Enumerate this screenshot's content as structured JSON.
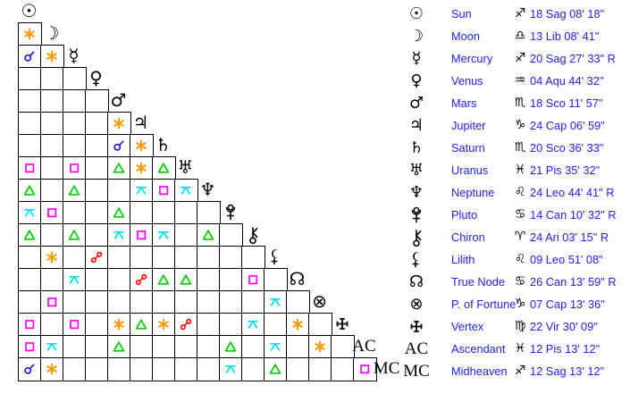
{
  "colors": {
    "text_blue": "#2222ee",
    "glyph_black": "#000000",
    "grid_line": "#000000",
    "background": "#ffffff"
  },
  "aspect_colors": {
    "conjunction": "#2222dd",
    "sextile": "#ff9900",
    "square": "#ff00ff",
    "trine": "#00cc00",
    "quincunx": "#00dcf0",
    "opposition": "#ff1111"
  },
  "planets": [
    {
      "key": "sun",
      "name": "Sun",
      "sign": "sag",
      "position": "18 Sag 08' 18\"",
      "aspects": {}
    },
    {
      "key": "moon",
      "name": "Moon",
      "sign": "lib",
      "position": "13 Lib 08' 41\"",
      "aspects": {
        "1": "sextile"
      }
    },
    {
      "key": "mercury",
      "name": "Mercury",
      "sign": "sag",
      "position": "20 Sag 27' 33\" R",
      "aspects": {
        "1": "conjunction",
        "2": "sextile"
      }
    },
    {
      "key": "venus",
      "name": "Venus",
      "sign": "aqu",
      "position": "04 Aqu 44' 32\"",
      "aspects": {}
    },
    {
      "key": "mars",
      "name": "Mars",
      "sign": "sco",
      "position": "18 Sco 11' 57\"",
      "aspects": {}
    },
    {
      "key": "jupiter",
      "name": "Jupiter",
      "sign": "cap",
      "position": "24 Cap 06' 59\"",
      "aspects": {
        "5": "sextile"
      }
    },
    {
      "key": "saturn",
      "name": "Saturn",
      "sign": "sco",
      "position": "20 Sco 36' 33\"",
      "aspects": {
        "5": "conjunction",
        "6": "sextile"
      }
    },
    {
      "key": "uranus",
      "name": "Uranus",
      "sign": "pis",
      "position": "21 Pis 35' 32\"",
      "aspects": {
        "1": "square",
        "3": "square",
        "5": "trine",
        "6": "sextile",
        "7": "trine"
      }
    },
    {
      "key": "neptune",
      "name": "Neptune",
      "sign": "leo",
      "position": "24 Leo 44' 41\" R",
      "aspects": {
        "1": "trine",
        "3": "trine",
        "6": "quincunx",
        "7": "square",
        "8": "quincunx"
      }
    },
    {
      "key": "pluto",
      "name": "Pluto",
      "sign": "can",
      "position": "14 Can 10' 32\" R",
      "aspects": {
        "1": "quincunx",
        "2": "square",
        "5": "trine"
      }
    },
    {
      "key": "chiron",
      "name": "Chiron",
      "sign": "ari",
      "position": "24 Ari 03' 15\" R",
      "aspects": {
        "1": "trine",
        "3": "trine",
        "5": "quincunx",
        "6": "square",
        "7": "quincunx",
        "9": "trine"
      }
    },
    {
      "key": "lilith",
      "name": "Lilith",
      "sign": "leo",
      "position": "09 Leo 51' 08\"",
      "aspects": {
        "2": "sextile",
        "4": "opposition"
      }
    },
    {
      "key": "true-node",
      "name": "True Node",
      "sign": "can",
      "position": "26 Can 13' 59\" R",
      "aspects": {
        "3": "quincunx",
        "6": "opposition",
        "7": "trine",
        "8": "trine",
        "11": "square"
      }
    },
    {
      "key": "fortune",
      "name": "P. of Fortune",
      "sign": "cap",
      "position": "07 Cap 13' 36\"",
      "aspects": {
        "2": "square",
        "12": "quincunx"
      }
    },
    {
      "key": "vertex",
      "name": "Vertex",
      "sign": "vir",
      "position": "22 Vir 30' 09\"",
      "aspects": {
        "1": "square",
        "3": "square",
        "5": "sextile",
        "6": "trine",
        "7": "sextile",
        "8": "opposition",
        "11": "quincunx",
        "13": "sextile"
      }
    },
    {
      "key": "ascendant",
      "name": "Ascendant",
      "sign": "pis",
      "position": "12 Pis 13' 12\"",
      "label": "AC",
      "aspects": {
        "1": "square",
        "2": "quincunx",
        "5": "trine",
        "10": "trine",
        "12": "quincunx",
        "14": "sextile"
      }
    },
    {
      "key": "midheaven",
      "name": "Midheaven",
      "sign": "sag",
      "position": "12 Sag 13' 12\"",
      "label": "MC",
      "aspects": {
        "1": "conjunction",
        "2": "sextile",
        "10": "quincunx",
        "12": "trine",
        "16": "square"
      }
    }
  ]
}
